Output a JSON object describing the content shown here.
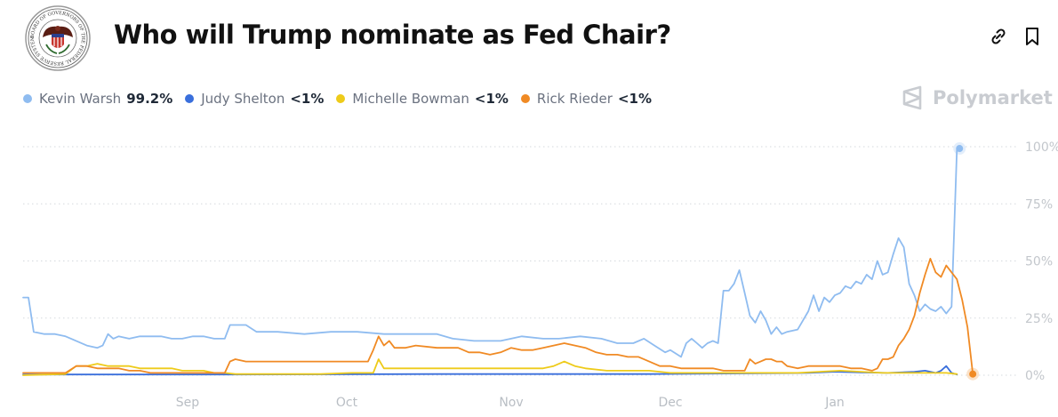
{
  "header": {
    "title": "Who will Trump nominate as Fed Chair?",
    "seal_text": "BOARD OF GOVERNORS OF THE FEDERAL RESERVE SYSTEM",
    "link_icon": "link-icon",
    "bookmark_icon": "bookmark-icon"
  },
  "brand": {
    "name": "Polymarket",
    "icon": "polymarket-logo-icon"
  },
  "legend": [
    {
      "name": "Kevin Warsh",
      "value": "99.2%",
      "color": "#8fbcf0"
    },
    {
      "name": "Judy Shelton",
      "value": "<1%",
      "color": "#3a6fdc"
    },
    {
      "name": "Michelle Bowman",
      "value": "<1%",
      "color": "#eecb1a"
    },
    {
      "name": "Rick Rieder",
      "value": "<1%",
      "color": "#f08a24"
    }
  ],
  "chart_data": {
    "type": "line",
    "x_ticks": [
      "Sep",
      "Oct",
      "Nov",
      "Dec",
      "Jan"
    ],
    "x_tick_days": [
      33,
      63,
      94,
      124,
      155
    ],
    "x_range_days": [
      2,
      186
    ],
    "y_ticks": [
      "100%",
      "75%",
      "50%",
      "25%",
      "0%"
    ],
    "y_tick_values": [
      100,
      75,
      50,
      25,
      0
    ],
    "ylim": [
      0,
      100
    ],
    "grid": true,
    "series": [
      {
        "name": "Kevin Warsh",
        "color": "#8fbcf0",
        "points": [
          [
            2,
            34
          ],
          [
            3,
            34
          ],
          [
            4,
            19
          ],
          [
            6,
            18
          ],
          [
            8,
            18
          ],
          [
            10,
            17
          ],
          [
            12,
            15
          ],
          [
            14,
            13
          ],
          [
            16,
            12
          ],
          [
            17,
            13
          ],
          [
            18,
            18
          ],
          [
            19,
            16
          ],
          [
            20,
            17
          ],
          [
            22,
            16
          ],
          [
            24,
            17
          ],
          [
            26,
            17
          ],
          [
            28,
            17
          ],
          [
            30,
            16
          ],
          [
            32,
            16
          ],
          [
            34,
            17
          ],
          [
            36,
            17
          ],
          [
            38,
            16
          ],
          [
            40,
            16
          ],
          [
            41,
            22
          ],
          [
            44,
            22
          ],
          [
            46,
            19
          ],
          [
            50,
            19
          ],
          [
            55,
            18
          ],
          [
            60,
            19
          ],
          [
            63,
            19
          ],
          [
            65,
            19
          ],
          [
            70,
            18
          ],
          [
            73,
            18
          ],
          [
            76,
            18
          ],
          [
            80,
            18
          ],
          [
            83,
            16
          ],
          [
            87,
            15
          ],
          [
            92,
            15
          ],
          [
            96,
            17
          ],
          [
            100,
            16
          ],
          [
            103,
            16
          ],
          [
            107,
            17
          ],
          [
            111,
            16
          ],
          [
            114,
            14
          ],
          [
            117,
            14
          ],
          [
            119,
            16
          ],
          [
            121,
            13
          ],
          [
            123,
            10
          ],
          [
            124,
            11
          ],
          [
            126,
            8
          ],
          [
            127,
            14
          ],
          [
            128,
            16
          ],
          [
            129,
            14
          ],
          [
            130,
            12
          ],
          [
            131,
            14
          ],
          [
            132,
            15
          ],
          [
            133,
            14
          ],
          [
            134,
            37
          ],
          [
            135,
            37
          ],
          [
            136,
            40
          ],
          [
            137,
            46
          ],
          [
            138,
            36
          ],
          [
            139,
            26
          ],
          [
            140,
            23
          ],
          [
            141,
            28
          ],
          [
            142,
            24
          ],
          [
            143,
            18
          ],
          [
            144,
            21
          ],
          [
            145,
            18
          ],
          [
            146,
            19
          ],
          [
            148,
            20
          ],
          [
            149,
            24
          ],
          [
            150,
            28
          ],
          [
            151,
            35
          ],
          [
            152,
            28
          ],
          [
            153,
            34
          ],
          [
            154,
            32
          ],
          [
            155,
            35
          ],
          [
            156,
            36
          ],
          [
            157,
            39
          ],
          [
            158,
            38
          ],
          [
            159,
            41
          ],
          [
            160,
            40
          ],
          [
            161,
            44
          ],
          [
            162,
            42
          ],
          [
            163,
            50
          ],
          [
            164,
            44
          ],
          [
            165,
            45
          ],
          [
            166,
            53
          ],
          [
            167,
            60
          ],
          [
            168,
            56
          ],
          [
            169,
            40
          ],
          [
            170,
            35
          ],
          [
            171,
            28
          ],
          [
            172,
            31
          ],
          [
            173,
            29
          ],
          [
            174,
            28
          ],
          [
            175,
            30
          ],
          [
            176,
            27
          ],
          [
            177,
            30
          ],
          [
            178,
            99
          ],
          [
            178.5,
            99.2
          ]
        ]
      },
      {
        "name": "Judy Shelton",
        "color": "#3a6fdc",
        "points": [
          [
            2,
            0.3
          ],
          [
            40,
            0.3
          ],
          [
            80,
            0.5
          ],
          [
            120,
            0.5
          ],
          [
            140,
            0.8
          ],
          [
            150,
            1
          ],
          [
            155,
            1.5
          ],
          [
            160,
            1.2
          ],
          [
            165,
            1
          ],
          [
            170,
            1.5
          ],
          [
            172,
            2
          ],
          [
            174,
            1
          ],
          [
            175,
            2
          ],
          [
            176,
            4
          ],
          [
            177,
            1
          ],
          [
            178,
            0.3
          ]
        ]
      },
      {
        "name": "Michelle Bowman",
        "color": "#eecb1a",
        "points": [
          [
            2,
            0
          ],
          [
            10,
            0.5
          ],
          [
            12,
            4
          ],
          [
            14,
            4
          ],
          [
            16,
            5
          ],
          [
            18,
            4
          ],
          [
            20,
            4
          ],
          [
            22,
            4
          ],
          [
            24,
            3
          ],
          [
            26,
            3
          ],
          [
            30,
            3
          ],
          [
            32,
            2
          ],
          [
            33,
            2
          ],
          [
            36,
            2
          ],
          [
            38,
            1
          ],
          [
            40,
            1
          ],
          [
            42,
            0.5
          ],
          [
            48,
            0.5
          ],
          [
            58,
            0.5
          ],
          [
            64,
            1
          ],
          [
            68,
            1
          ],
          [
            69,
            7
          ],
          [
            70,
            3
          ],
          [
            72,
            3
          ],
          [
            76,
            3
          ],
          [
            80,
            3
          ],
          [
            84,
            3
          ],
          [
            88,
            3
          ],
          [
            92,
            3
          ],
          [
            96,
            3
          ],
          [
            100,
            3
          ],
          [
            102,
            4
          ],
          [
            104,
            6
          ],
          [
            106,
            4
          ],
          [
            108,
            3
          ],
          [
            112,
            2
          ],
          [
            116,
            2
          ],
          [
            120,
            2
          ],
          [
            124,
            1
          ],
          [
            128,
            1
          ],
          [
            132,
            1
          ],
          [
            136,
            1
          ],
          [
            140,
            1
          ],
          [
            144,
            1
          ],
          [
            148,
            1
          ],
          [
            152,
            1.5
          ],
          [
            156,
            2
          ],
          [
            160,
            1.5
          ],
          [
            164,
            1
          ],
          [
            168,
            1
          ],
          [
            172,
            1
          ],
          [
            176,
            1
          ],
          [
            178,
            0.5
          ]
        ]
      },
      {
        "name": "Rick Rieder",
        "color": "#f08a24",
        "points": [
          [
            2,
            1
          ],
          [
            10,
            1
          ],
          [
            12,
            4
          ],
          [
            14,
            4
          ],
          [
            16,
            3
          ],
          [
            18,
            3
          ],
          [
            20,
            3
          ],
          [
            22,
            2
          ],
          [
            24,
            2
          ],
          [
            26,
            1
          ],
          [
            30,
            1
          ],
          [
            34,
            1
          ],
          [
            38,
            1
          ],
          [
            40,
            1
          ],
          [
            41,
            6
          ],
          [
            42,
            7
          ],
          [
            44,
            6
          ],
          [
            46,
            6
          ],
          [
            48,
            6
          ],
          [
            50,
            6
          ],
          [
            52,
            6
          ],
          [
            54,
            6
          ],
          [
            56,
            6
          ],
          [
            58,
            6
          ],
          [
            60,
            6
          ],
          [
            64,
            6
          ],
          [
            67,
            6
          ],
          [
            68,
            11
          ],
          [
            69,
            17
          ],
          [
            70,
            13
          ],
          [
            71,
            15
          ],
          [
            72,
            12
          ],
          [
            74,
            12
          ],
          [
            76,
            13
          ],
          [
            80,
            12
          ],
          [
            84,
            12
          ],
          [
            86,
            10
          ],
          [
            88,
            10
          ],
          [
            90,
            9
          ],
          [
            92,
            10
          ],
          [
            94,
            12
          ],
          [
            96,
            11
          ],
          [
            98,
            11
          ],
          [
            100,
            12
          ],
          [
            102,
            13
          ],
          [
            104,
            14
          ],
          [
            106,
            13
          ],
          [
            108,
            12
          ],
          [
            110,
            10
          ],
          [
            112,
            9
          ],
          [
            114,
            9
          ],
          [
            116,
            8
          ],
          [
            118,
            8
          ],
          [
            120,
            6
          ],
          [
            122,
            4
          ],
          [
            124,
            4
          ],
          [
            126,
            3
          ],
          [
            128,
            3
          ],
          [
            130,
            3
          ],
          [
            132,
            3
          ],
          [
            134,
            2
          ],
          [
            136,
            2
          ],
          [
            138,
            2
          ],
          [
            139,
            7
          ],
          [
            140,
            5
          ],
          [
            141,
            6
          ],
          [
            142,
            7
          ],
          [
            143,
            7
          ],
          [
            144,
            6
          ],
          [
            145,
            6
          ],
          [
            146,
            4
          ],
          [
            148,
            3
          ],
          [
            150,
            4
          ],
          [
            152,
            4
          ],
          [
            154,
            4
          ],
          [
            156,
            4
          ],
          [
            158,
            3
          ],
          [
            160,
            3
          ],
          [
            162,
            2
          ],
          [
            163,
            3
          ],
          [
            164,
            7
          ],
          [
            165,
            7
          ],
          [
            166,
            8
          ],
          [
            167,
            13
          ],
          [
            168,
            16
          ],
          [
            169,
            20
          ],
          [
            170,
            26
          ],
          [
            171,
            36
          ],
          [
            172,
            44
          ],
          [
            173,
            51
          ],
          [
            174,
            45
          ],
          [
            175,
            43
          ],
          [
            176,
            48
          ],
          [
            177,
            45
          ],
          [
            178,
            42
          ],
          [
            179,
            33
          ],
          [
            180,
            21
          ],
          [
            181,
            0.5
          ]
        ]
      }
    ],
    "end_markers": [
      {
        "series": "Kevin Warsh",
        "day": 178.5,
        "value": 99.2
      },
      {
        "series": "Rick Rieder",
        "day": 181,
        "value": 0.5
      }
    ]
  }
}
